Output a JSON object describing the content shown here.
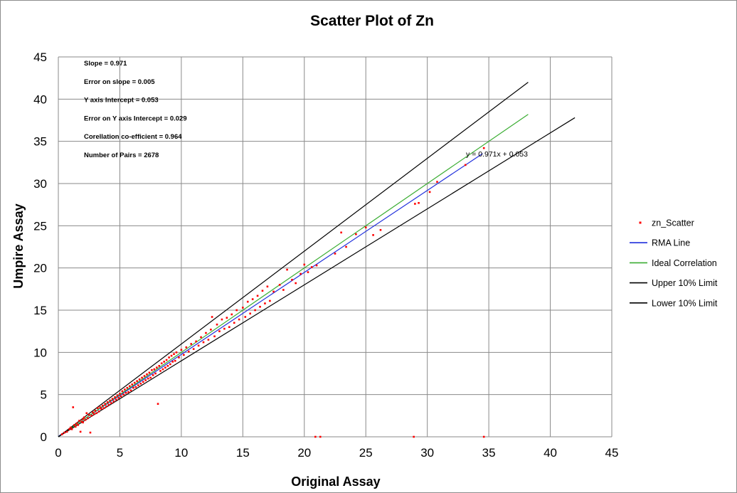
{
  "chart_data": {
    "type": "scatter",
    "title": "Scatter Plot of Zn",
    "xlabel": "Original Assay",
    "ylabel": "Umpire Assay",
    "xlim": [
      0,
      45
    ],
    "ylim": [
      0,
      45
    ],
    "xticks": [
      "0",
      "5",
      "10",
      "15",
      "20",
      "25",
      "30",
      "35",
      "40",
      "45"
    ],
    "yticks": [
      "0",
      "5",
      "10",
      "15",
      "20",
      "25",
      "30",
      "35",
      "40",
      "45"
    ],
    "grid": true,
    "legend_position": "right",
    "stats": [
      "Slope = 0.971",
      "Error on slope = 0.005",
      "Y axis Intercept = 0.053",
      "Error on Y axis Intercept = 0.029",
      "Corellation co-efficient = 0.964",
      "Number of Pairs = 2678"
    ],
    "equation_label": "y = 0.971x + 0.053",
    "series": [
      {
        "name": "zn_Scatter",
        "kind": "points",
        "color": "#ff0000",
        "points": [
          [
            0.3,
            0.3
          ],
          [
            0.5,
            0.5
          ],
          [
            0.7,
            0.6
          ],
          [
            0.9,
            0.9
          ],
          [
            1.0,
            1.1
          ],
          [
            1.1,
            0.9
          ],
          [
            1.2,
            3.5
          ],
          [
            1.3,
            1.4
          ],
          [
            1.4,
            1.2
          ],
          [
            1.5,
            1.6
          ],
          [
            1.6,
            1.4
          ],
          [
            1.7,
            1.9
          ],
          [
            1.8,
            0.6
          ],
          [
            1.9,
            1.8
          ],
          [
            2.0,
            2.1
          ],
          [
            2.0,
            1.7
          ],
          [
            2.1,
            2.3
          ],
          [
            2.2,
            2.0
          ],
          [
            2.3,
            2.8
          ],
          [
            2.4,
            2.2
          ],
          [
            2.5,
            2.6
          ],
          [
            2.6,
            0.5
          ],
          [
            2.7,
            2.5
          ],
          [
            2.8,
            2.9
          ],
          [
            2.9,
            2.7
          ],
          [
            3.0,
            3.1
          ],
          [
            3.1,
            2.8
          ],
          [
            3.2,
            3.4
          ],
          [
            3.3,
            3.0
          ],
          [
            3.4,
            3.5
          ],
          [
            3.5,
            3.3
          ],
          [
            3.6,
            3.7
          ],
          [
            3.7,
            3.4
          ],
          [
            3.8,
            3.9
          ],
          [
            3.9,
            3.6
          ],
          [
            4.0,
            4.1
          ],
          [
            4.1,
            3.8
          ],
          [
            4.2,
            4.3
          ],
          [
            4.3,
            4.0
          ],
          [
            4.4,
            4.5
          ],
          [
            4.5,
            4.2
          ],
          [
            4.6,
            4.7
          ],
          [
            4.7,
            4.4
          ],
          [
            4.8,
            4.9
          ],
          [
            4.9,
            4.6
          ],
          [
            5.0,
            5.1
          ],
          [
            5.1,
            4.8
          ],
          [
            5.2,
            5.4
          ],
          [
            5.3,
            5.0
          ],
          [
            5.4,
            5.6
          ],
          [
            5.5,
            5.2
          ],
          [
            5.6,
            5.8
          ],
          [
            5.7,
            5.3
          ],
          [
            5.8,
            6.0
          ],
          [
            5.9,
            5.5
          ],
          [
            6.0,
            6.2
          ],
          [
            6.1,
            5.8
          ],
          [
            6.2,
            6.4
          ],
          [
            6.3,
            5.9
          ],
          [
            6.4,
            6.6
          ],
          [
            6.5,
            6.1
          ],
          [
            6.6,
            6.8
          ],
          [
            6.7,
            6.3
          ],
          [
            6.8,
            7.0
          ],
          [
            6.9,
            6.5
          ],
          [
            7.0,
            7.2
          ],
          [
            7.1,
            6.7
          ],
          [
            7.2,
            7.4
          ],
          [
            7.3,
            6.9
          ],
          [
            7.4,
            7.6
          ],
          [
            7.5,
            7.0
          ],
          [
            7.6,
            7.9
          ],
          [
            7.7,
            7.3
          ],
          [
            7.8,
            8.0
          ],
          [
            7.9,
            7.5
          ],
          [
            8.0,
            8.2
          ],
          [
            8.1,
            3.9
          ],
          [
            8.2,
            8.4
          ],
          [
            8.3,
            7.8
          ],
          [
            8.4,
            8.7
          ],
          [
            8.5,
            8.0
          ],
          [
            8.6,
            8.9
          ],
          [
            8.7,
            8.2
          ],
          [
            8.8,
            9.1
          ],
          [
            8.9,
            8.4
          ],
          [
            9.0,
            9.4
          ],
          [
            9.1,
            8.6
          ],
          [
            9.2,
            9.6
          ],
          [
            9.3,
            8.9
          ],
          [
            9.4,
            9.8
          ],
          [
            9.5,
            9.0
          ],
          [
            9.6,
            10.0
          ],
          [
            9.8,
            9.4
          ],
          [
            10.0,
            10.3
          ],
          [
            10.2,
            9.7
          ],
          [
            10.4,
            10.6
          ],
          [
            10.6,
            10.1
          ],
          [
            10.8,
            11.0
          ],
          [
            11.0,
            10.4
          ],
          [
            11.2,
            11.3
          ],
          [
            11.4,
            10.8
          ],
          [
            11.6,
            11.8
          ],
          [
            11.8,
            11.2
          ],
          [
            12.0,
            12.3
          ],
          [
            12.2,
            11.5
          ],
          [
            12.4,
            12.7
          ],
          [
            12.5,
            14.2
          ],
          [
            12.7,
            11.9
          ],
          [
            12.9,
            13.3
          ],
          [
            13.1,
            12.5
          ],
          [
            13.3,
            13.9
          ],
          [
            13.5,
            12.8
          ],
          [
            13.7,
            14.1
          ],
          [
            13.9,
            13.0
          ],
          [
            14.1,
            14.5
          ],
          [
            14.3,
            13.5
          ],
          [
            14.5,
            15.0
          ],
          [
            14.7,
            13.9
          ],
          [
            15.0,
            15.3
          ],
          [
            15.2,
            14.2
          ],
          [
            15.4,
            16.0
          ],
          [
            15.6,
            14.6
          ],
          [
            15.8,
            16.3
          ],
          [
            16.0,
            15.0
          ],
          [
            16.2,
            16.7
          ],
          [
            16.4,
            15.4
          ],
          [
            16.6,
            17.3
          ],
          [
            16.8,
            15.8
          ],
          [
            17.0,
            17.8
          ],
          [
            17.2,
            16.1
          ],
          [
            17.5,
            17.2
          ],
          [
            18.0,
            18.0
          ],
          [
            18.3,
            17.4
          ],
          [
            18.6,
            19.8
          ],
          [
            19.0,
            18.6
          ],
          [
            19.3,
            18.2
          ],
          [
            19.7,
            19.3
          ],
          [
            20.0,
            20.4
          ],
          [
            20.3,
            19.5
          ],
          [
            20.6,
            20.1
          ],
          [
            21.0,
            20.3
          ],
          [
            22.5,
            21.7
          ],
          [
            23.0,
            24.2
          ],
          [
            23.4,
            22.5
          ],
          [
            24.2,
            24.0
          ],
          [
            25.0,
            24.8
          ],
          [
            25.6,
            23.9
          ],
          [
            26.2,
            24.5
          ],
          [
            29.0,
            27.6
          ],
          [
            29.3,
            27.7
          ],
          [
            30.2,
            29.0
          ],
          [
            30.8,
            30.2
          ],
          [
            33.1,
            32.2
          ],
          [
            34.6,
            34.2
          ],
          [
            20.9,
            0.0
          ],
          [
            21.3,
            0.0
          ],
          [
            28.9,
            0.0
          ],
          [
            34.6,
            0.0
          ]
        ]
      },
      {
        "name": "RMA Line",
        "kind": "line",
        "color": "#1f2fdc",
        "x": [
          0,
          34.5
        ],
        "y": [
          0.053,
          33.553
        ]
      },
      {
        "name": "Ideal Correlation",
        "kind": "line",
        "color": "#3aad32",
        "x": [
          0,
          38.2
        ],
        "y": [
          0,
          38.2
        ]
      },
      {
        "name": "Upper 10% Limit",
        "kind": "line",
        "color": "#000000",
        "x": [
          0,
          38.2
        ],
        "y": [
          0,
          42.0
        ]
      },
      {
        "name": "Lower 10% Limit",
        "kind": "line",
        "color": "#000000",
        "x": [
          0,
          42.0
        ],
        "y": [
          0,
          37.8
        ]
      }
    ]
  }
}
